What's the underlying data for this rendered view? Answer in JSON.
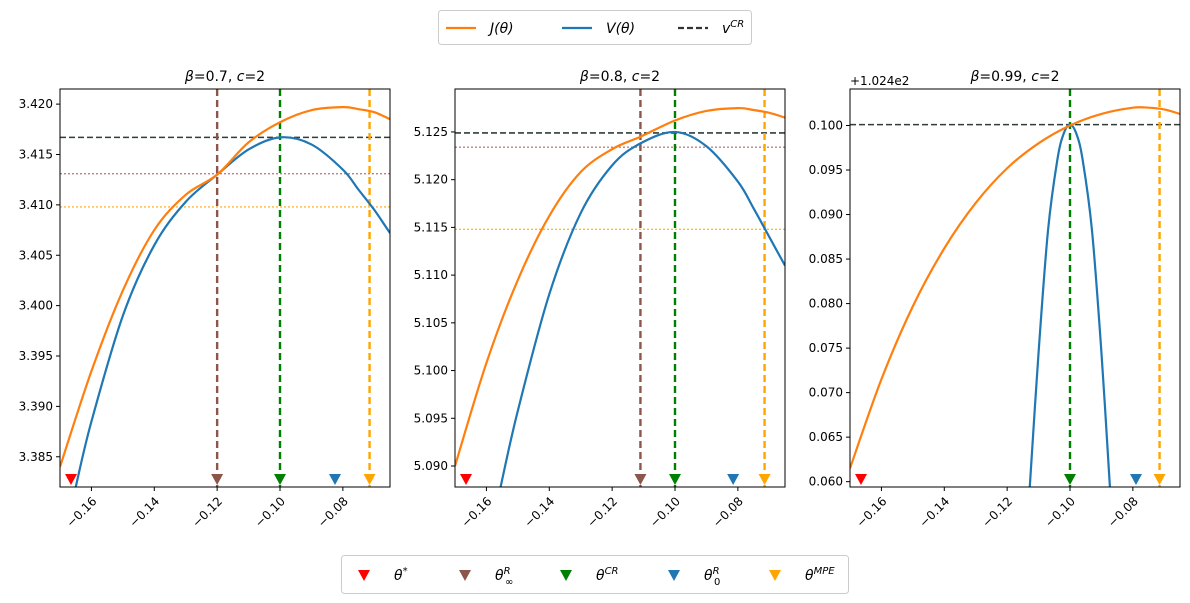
{
  "chart_data": {
    "type": "line",
    "figure_legend_top": {
      "entries": [
        {
          "name": "J(θ)",
          "label_main": "J(",
          "label_var": "θ",
          "label_end": ")",
          "color": "#ff7f0e",
          "style": "solid"
        },
        {
          "name": "V(θ)",
          "label_main": "V(",
          "label_var": "θ",
          "label_end": ")",
          "color": "#1f77b4",
          "style": "solid"
        },
        {
          "name": "v^CR",
          "label_main": "v",
          "label_sup": "CR",
          "color": "#333333",
          "style": "dashed"
        }
      ]
    },
    "figure_legend_bottom": {
      "entries": [
        {
          "name": "θ*",
          "base": "θ",
          "sup": "*",
          "sub": "",
          "color": "#ff0000"
        },
        {
          "name": "θ^R_∞",
          "base": "θ",
          "sup": "R",
          "sub": "∞",
          "color": "#8c564b"
        },
        {
          "name": "θ^CR",
          "base": "θ",
          "sup": "CR",
          "sub": "",
          "color": "#008000"
        },
        {
          "name": "θ^R_0",
          "base": "θ",
          "sup": "R",
          "sub": "0",
          "color": "#1f77b4"
        },
        {
          "name": "θ^MPE",
          "base": "θ",
          "sup": "MPE",
          "sub": "",
          "color": "#ffa500"
        }
      ]
    },
    "panels": [
      {
        "title_beta": "β",
        "title_text": "=0.7, ",
        "title_c": "c",
        "title_end": "=2",
        "xlabel": "",
        "ylabel": "",
        "xlim": [
          -0.17,
          -0.065
        ],
        "ylim": [
          3.382,
          3.4215
        ],
        "y_offset_label": "",
        "x_ticks": [
          -0.16,
          -0.14,
          -0.12,
          -0.1,
          -0.08
        ],
        "x_tick_labels": [
          "−0.16",
          "−0.14",
          "−0.12",
          "−0.10",
          "−0.08"
        ],
        "y_ticks": [
          3.385,
          3.39,
          3.395,
          3.4,
          3.405,
          3.41,
          3.415,
          3.42
        ],
        "y_tick_labels": [
          "3.385",
          "3.390",
          "3.395",
          "3.400",
          "3.405",
          "3.410",
          "3.415",
          "3.420"
        ],
        "J_curve": {
          "x": [
            -0.17,
            -0.16,
            -0.15,
            -0.14,
            -0.13,
            -0.12,
            -0.11,
            -0.1,
            -0.09,
            -0.08,
            -0.075,
            -0.07,
            -0.065
          ],
          "y": [
            3.384,
            3.3935,
            3.4015,
            3.4075,
            3.411,
            3.413,
            3.4162,
            3.4182,
            3.4194,
            3.4197,
            3.4195,
            3.4192,
            3.4185
          ]
        },
        "V_curve": {
          "x": [
            -0.165,
            -0.16,
            -0.15,
            -0.14,
            -0.13,
            -0.12,
            -0.11,
            -0.1,
            -0.09,
            -0.08,
            -0.075,
            -0.07,
            -0.065
          ],
          "y": [
            3.382,
            3.3885,
            3.399,
            3.406,
            3.4103,
            3.413,
            3.4155,
            3.4167,
            3.416,
            3.4135,
            3.4115,
            3.4095,
            3.4072
          ]
        },
        "hlines": [
          {
            "y": 3.4167,
            "color": "#2f3f3a",
            "style": "dashed"
          },
          {
            "y": 3.4131,
            "color": "#c08080",
            "style": "dotted"
          },
          {
            "y": 3.4098,
            "color": "#ffb833",
            "style": "dotted"
          }
        ],
        "vlines": [
          {
            "x": -0.12,
            "color": "#8c564b"
          },
          {
            "x": -0.1,
            "color": "#008000"
          },
          {
            "x": -0.0715,
            "color": "#ffa500"
          }
        ],
        "markers": [
          {
            "x": -0.1665,
            "color": "#ff0000"
          },
          {
            "x": -0.12,
            "color": "#8c564b"
          },
          {
            "x": -0.1,
            "color": "#008000"
          },
          {
            "x": -0.0825,
            "color": "#1f77b4"
          },
          {
            "x": -0.0715,
            "color": "#ffa500"
          }
        ]
      },
      {
        "title_beta": "β",
        "title_text": "=0.8, ",
        "title_c": "c",
        "title_end": "=2",
        "xlabel": "",
        "ylabel": "",
        "xlim": [
          -0.17,
          -0.065
        ],
        "ylim": [
          5.0878,
          5.1295
        ],
        "y_offset_label": "",
        "x_ticks": [
          -0.16,
          -0.14,
          -0.12,
          -0.1,
          -0.08
        ],
        "x_tick_labels": [
          "−0.16",
          "−0.14",
          "−0.12",
          "−0.10",
          "−0.08"
        ],
        "y_ticks": [
          5.09,
          5.095,
          5.1,
          5.105,
          5.11,
          5.115,
          5.12,
          5.125
        ],
        "y_tick_labels": [
          "5.090",
          "5.095",
          "5.100",
          "5.105",
          "5.110",
          "5.115",
          "5.120",
          "5.125"
        ],
        "J_curve": {
          "x": [
            -0.17,
            -0.16,
            -0.15,
            -0.14,
            -0.13,
            -0.12,
            -0.111,
            -0.1,
            -0.09,
            -0.08,
            -0.075,
            -0.07,
            -0.065
          ],
          "y": [
            5.09,
            5.1008,
            5.1095,
            5.1162,
            5.1208,
            5.1232,
            5.1245,
            5.1262,
            5.1272,
            5.1275,
            5.1273,
            5.127,
            5.1265
          ]
        },
        "V_curve": {
          "x": [
            -0.1555,
            -0.15,
            -0.14,
            -0.13,
            -0.12,
            -0.111,
            -0.1,
            -0.09,
            -0.08,
            -0.075,
            -0.07,
            -0.065
          ],
          "y": [
            5.0878,
            5.0958,
            5.108,
            5.1165,
            5.1215,
            5.1238,
            5.125,
            5.1235,
            5.1198,
            5.117,
            5.114,
            5.111
          ]
        },
        "hlines": [
          {
            "y": 5.1249,
            "color": "#2f3f3a",
            "style": "dashed"
          },
          {
            "y": 5.1234,
            "color": "#c08080",
            "style": "dotted"
          },
          {
            "y": 5.1148,
            "color": "#ffb833",
            "style": "dotted"
          }
        ],
        "vlines": [
          {
            "x": -0.111,
            "color": "#8c564b"
          },
          {
            "x": -0.1,
            "color": "#008000"
          },
          {
            "x": -0.0715,
            "color": "#ffa500"
          }
        ],
        "markers": [
          {
            "x": -0.1665,
            "color": "#ff0000"
          },
          {
            "x": -0.111,
            "color": "#8c564b"
          },
          {
            "x": -0.1,
            "color": "#008000"
          },
          {
            "x": -0.0815,
            "color": "#1f77b4"
          },
          {
            "x": -0.0715,
            "color": "#ffa500"
          }
        ]
      },
      {
        "title_beta": "β",
        "title_text": "=0.99, ",
        "title_c": "c",
        "title_end": "=2",
        "xlabel": "",
        "ylabel": "",
        "xlim": [
          -0.17,
          -0.065
        ],
        "ylim": [
          0.0594,
          0.1041
        ],
        "y_offset_label": "+1.024e2",
        "x_ticks": [
          -0.16,
          -0.14,
          -0.12,
          -0.1,
          -0.08
        ],
        "x_tick_labels": [
          "−0.16",
          "−0.14",
          "−0.12",
          "−0.10",
          "−0.08"
        ],
        "y_ticks": [
          0.06,
          0.065,
          0.07,
          0.075,
          0.08,
          0.085,
          0.09,
          0.095,
          0.1
        ],
        "y_tick_labels": [
          "0.060",
          "0.065",
          "0.070",
          "0.075",
          "0.080",
          "0.085",
          "0.090",
          "0.095",
          "0.100"
        ],
        "J_curve": {
          "x": [
            -0.17,
            -0.16,
            -0.15,
            -0.14,
            -0.13,
            -0.12,
            -0.11,
            -0.1,
            -0.09,
            -0.08,
            -0.075,
            -0.07,
            -0.065
          ],
          "y": [
            0.0615,
            0.0715,
            0.0797,
            0.0862,
            0.0913,
            0.0952,
            0.098,
            0.1,
            0.1013,
            0.102,
            0.102,
            0.1018,
            0.1013
          ]
        },
        "V_curve": {
          "x": [
            -0.1128,
            -0.11,
            -0.107,
            -0.104,
            -0.102,
            -0.1,
            -0.098,
            -0.096,
            -0.093,
            -0.09,
            -0.0873
          ],
          "y": [
            0.0594,
            0.0745,
            0.0882,
            0.0962,
            0.0991,
            0.1001,
            0.0991,
            0.0962,
            0.0882,
            0.0745,
            0.0594
          ]
        },
        "hlines": [
          {
            "y": 0.1001,
            "color": "#2f3f3a",
            "style": "dashed"
          }
        ],
        "vlines": [
          {
            "x": -0.1,
            "color": "#008000"
          },
          {
            "x": -0.0715,
            "color": "#ffa500"
          }
        ],
        "markers": [
          {
            "x": -0.1665,
            "color": "#ff0000"
          },
          {
            "x": -0.1,
            "color": "#008000"
          },
          {
            "x": -0.079,
            "color": "#1f77b4"
          },
          {
            "x": -0.0715,
            "color": "#ffa500"
          }
        ]
      }
    ]
  }
}
